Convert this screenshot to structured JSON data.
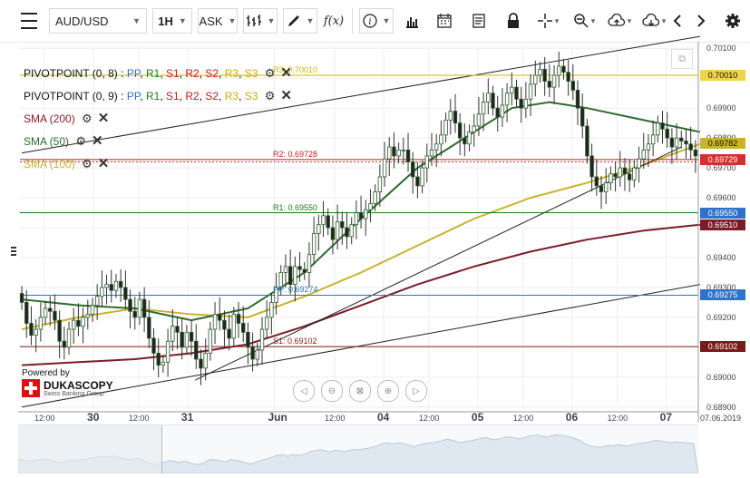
{
  "toolbar": {
    "instrument": "AUD/USD",
    "period": "1H",
    "side": "ASK",
    "fx_label": "f(x)",
    "icons": [
      "menu-icon",
      "bar-type-icon",
      "pencil-icon",
      "fx-icon",
      "info-icon",
      "bars-icon",
      "calendar-icon",
      "document-icon",
      "lock-icon",
      "crosshair-icon",
      "zoom-icon",
      "upload-icon",
      "download-icon",
      "prev-icon",
      "next-icon",
      "settings-icon"
    ]
  },
  "indicators": [
    {
      "name": "PIVOTPOINT (0, 8)",
      "levels": [
        "PP",
        "R1",
        "S1",
        "R2",
        "S2",
        "R3",
        "S3"
      ],
      "color": "#111111"
    },
    {
      "name": "PIVOTPOINT (0, 9)",
      "levels": [
        "PP",
        "R1",
        "S1",
        "R2",
        "S2",
        "R3",
        "S3"
      ],
      "color": "#111111"
    },
    {
      "name": "SMA (200)",
      "color": "#8b1a2b"
    },
    {
      "name": "SMA (50)",
      "color": "#2e6b2e"
    },
    {
      "name": "SMA (100)",
      "color": "#c9b22e"
    }
  ],
  "level_colors": {
    "PP": "#2f72c9",
    "R1": "#1b7a1b",
    "S1": "#c21b1b",
    "R2": "#c21b1b",
    "S2": "#c21b1b",
    "R3": "#d4a800",
    "S3": "#d4a800"
  },
  "pivot_labels": [
    {
      "text": "R3: 0.70010",
      "value": 0.7001,
      "color": "#c9b400"
    },
    {
      "text": "R2: 0.69728",
      "value": 0.69728,
      "color": "#b22222"
    },
    {
      "text": "R1: 0.69550",
      "value": 0.6955,
      "color": "#1b7a1b"
    },
    {
      "text": "PP: 0.69274",
      "value": 0.69274,
      "color": "#2f72c9"
    },
    {
      "text": "S1: 0.69102",
      "value": 0.69102,
      "color": "#8b1a1a"
    }
  ],
  "price_tags": [
    {
      "text": "0.70010",
      "value": 0.7001,
      "bg": "#f0d34a",
      "fg": "#111111"
    },
    {
      "text": "0.69782",
      "value": 0.69782,
      "bg": "#c9b22e",
      "fg": "#111111"
    },
    {
      "text": "0.69729",
      "value": 0.69729,
      "bg": "#d32f2f",
      "fg": "#ffffff"
    },
    {
      "text": "0.69550",
      "value": 0.6955,
      "bg": "#2f72c9",
      "fg": "#ffffff"
    },
    {
      "text": "0.69510",
      "value": 0.6951,
      "bg": "#7a1c28",
      "fg": "#ffffff"
    },
    {
      "text": "0.69275",
      "value": 0.69275,
      "bg": "#2f72c9",
      "fg": "#ffffff"
    },
    {
      "text": "0.69102",
      "value": 0.69102,
      "bg": "#7a1a1a",
      "fg": "#ffffff"
    }
  ],
  "branding": {
    "powered_by": "Powered by",
    "brand": "DUKASCOPY",
    "tagline": "Swiss Banking Group"
  },
  "chart_data": {
    "type": "candlestick",
    "symbol": "AUD/USD",
    "timeframe": "1H",
    "ylim": [
      0.6889,
      0.7011
    ],
    "yticks": [
      0.689,
      0.69,
      0.691,
      0.692,
      0.693,
      0.694,
      0.695,
      0.696,
      0.697,
      0.698,
      0.699,
      0.7,
      0.701
    ],
    "ytick_labels": [
      "0.68900",
      "0.69000",
      "0.69100",
      "0.69200",
      "0.69300",
      "0.69400",
      "0.69500",
      "0.69600",
      "0.69700",
      "0.69800",
      "0.69900",
      "0.70000",
      "0.70100"
    ],
    "xticks": [
      {
        "label": "12:00",
        "bold": false,
        "index": 6
      },
      {
        "label": "30",
        "bold": true,
        "index": 19
      },
      {
        "label": "12:00",
        "bold": false,
        "index": 31
      },
      {
        "label": "31",
        "bold": true,
        "index": 44
      },
      {
        "label": "Jun",
        "bold": true,
        "index": 67
      },
      {
        "label": "12:00",
        "bold": false,
        "index": 83
      },
      {
        "label": "04",
        "bold": true,
        "index": 96
      },
      {
        "label": "12:00",
        "bold": false,
        "index": 108
      },
      {
        "label": "05",
        "bold": true,
        "index": 121
      },
      {
        "label": "12:00",
        "bold": false,
        "index": 133
      },
      {
        "label": "06",
        "bold": true,
        "index": 146
      },
      {
        "label": "12:00",
        "bold": false,
        "index": 158
      },
      {
        "label": "07",
        "bold": true,
        "index": 171
      }
    ],
    "date_label": "07.06.2019",
    "close": [
      0.6925,
      0.6918,
      0.6914,
      0.6916,
      0.692,
      0.6923,
      0.6922,
      0.6919,
      0.6912,
      0.691,
      0.6916,
      0.6919,
      0.6917,
      0.692,
      0.6921,
      0.6924,
      0.6927,
      0.693,
      0.6931,
      0.6929,
      0.6932,
      0.693,
      0.6926,
      0.6922,
      0.692,
      0.6926,
      0.692,
      0.6913,
      0.6908,
      0.6904,
      0.6905,
      0.6912,
      0.6917,
      0.6915,
      0.691,
      0.6915,
      0.6912,
      0.6906,
      0.6903,
      0.6908,
      0.6916,
      0.6921,
      0.6919,
      0.6916,
      0.6913,
      0.6921,
      0.6918,
      0.6915,
      0.691,
      0.6906,
      0.6909,
      0.6916,
      0.692,
      0.6925,
      0.693,
      0.6935,
      0.6937,
      0.6931,
      0.6937,
      0.6936,
      0.6935,
      0.6941,
      0.6948,
      0.6951,
      0.6954,
      0.695,
      0.6946,
      0.6952,
      0.695,
      0.6947,
      0.6951,
      0.6955,
      0.6953,
      0.6956,
      0.6958,
      0.6962,
      0.6967,
      0.6973,
      0.6977,
      0.6974,
      0.6976,
      0.6976,
      0.6972,
      0.6967,
      0.6964,
      0.697,
      0.6974,
      0.6976,
      0.6978,
      0.6981,
      0.6986,
      0.6989,
      0.6985,
      0.698,
      0.6978,
      0.6982,
      0.6984,
      0.6988,
      0.6992,
      0.6995,
      0.699,
      0.6987,
      0.6991,
      0.6995,
      0.6997,
      0.6993,
      0.699,
      0.6993,
      0.6998,
      0.7001,
      0.7003,
      0.6999,
      0.6997,
      0.7001,
      0.7004,
      0.7002,
      0.6999,
      0.6996,
      0.699,
      0.6984,
      0.6974,
      0.6967,
      0.6964,
      0.6962,
      0.6965,
      0.6968,
      0.6967,
      0.697,
      0.6968,
      0.6966,
      0.697,
      0.6973,
      0.6976,
      0.6978,
      0.6981,
      0.6985,
      0.6983,
      0.698,
      0.6977,
      0.698,
      0.6979,
      0.6978,
      0.6976,
      0.6974
    ],
    "series": [
      {
        "name": "SMA (200)",
        "color": "#7a1c28",
        "values": [
          [
            0,
            0.6904
          ],
          [
            15,
            0.6905
          ],
          [
            30,
            0.6906
          ],
          [
            45,
            0.6908
          ],
          [
            60,
            0.6911
          ],
          [
            75,
            0.6917
          ],
          [
            90,
            0.6924
          ],
          [
            105,
            0.6931
          ],
          [
            120,
            0.6937
          ],
          [
            135,
            0.6942
          ],
          [
            150,
            0.6946
          ],
          [
            165,
            0.6949
          ],
          [
            180,
            0.6951
          ]
        ]
      },
      {
        "name": "SMA (100)",
        "color": "#c9b22e",
        "values": [
          [
            0,
            0.6916
          ],
          [
            15,
            0.692
          ],
          [
            30,
            0.6923
          ],
          [
            45,
            0.6921
          ],
          [
            60,
            0.692
          ],
          [
            75,
            0.6927
          ],
          [
            90,
            0.6935
          ],
          [
            105,
            0.6944
          ],
          [
            120,
            0.6953
          ],
          [
            135,
            0.696
          ],
          [
            150,
            0.6965
          ],
          [
            165,
            0.6971
          ],
          [
            180,
            0.6978
          ]
        ]
      },
      {
        "name": "SMA (50)",
        "color": "#2e6b2e",
        "values": [
          [
            0,
            0.6926
          ],
          [
            15,
            0.6924
          ],
          [
            30,
            0.6923
          ],
          [
            45,
            0.6919
          ],
          [
            60,
            0.6923
          ],
          [
            75,
            0.6935
          ],
          [
            90,
            0.6953
          ],
          [
            105,
            0.697
          ],
          [
            120,
            0.6982
          ],
          [
            130,
            0.699
          ],
          [
            140,
            0.6992
          ],
          [
            150,
            0.699
          ],
          [
            165,
            0.6986
          ],
          [
            180,
            0.6982
          ]
        ]
      }
    ],
    "trendlines": [
      {
        "from": [
          0,
          0.6975
        ],
        "to": [
          180,
          0.7014
        ],
        "color": "#222222"
      },
      {
        "from": [
          46,
          0.6899
        ],
        "to": [
          175,
          0.6977
        ],
        "color": "#222222"
      },
      {
        "from": [
          0,
          0.689
        ],
        "to": [
          180,
          0.6931
        ],
        "color": "#222222"
      }
    ]
  }
}
